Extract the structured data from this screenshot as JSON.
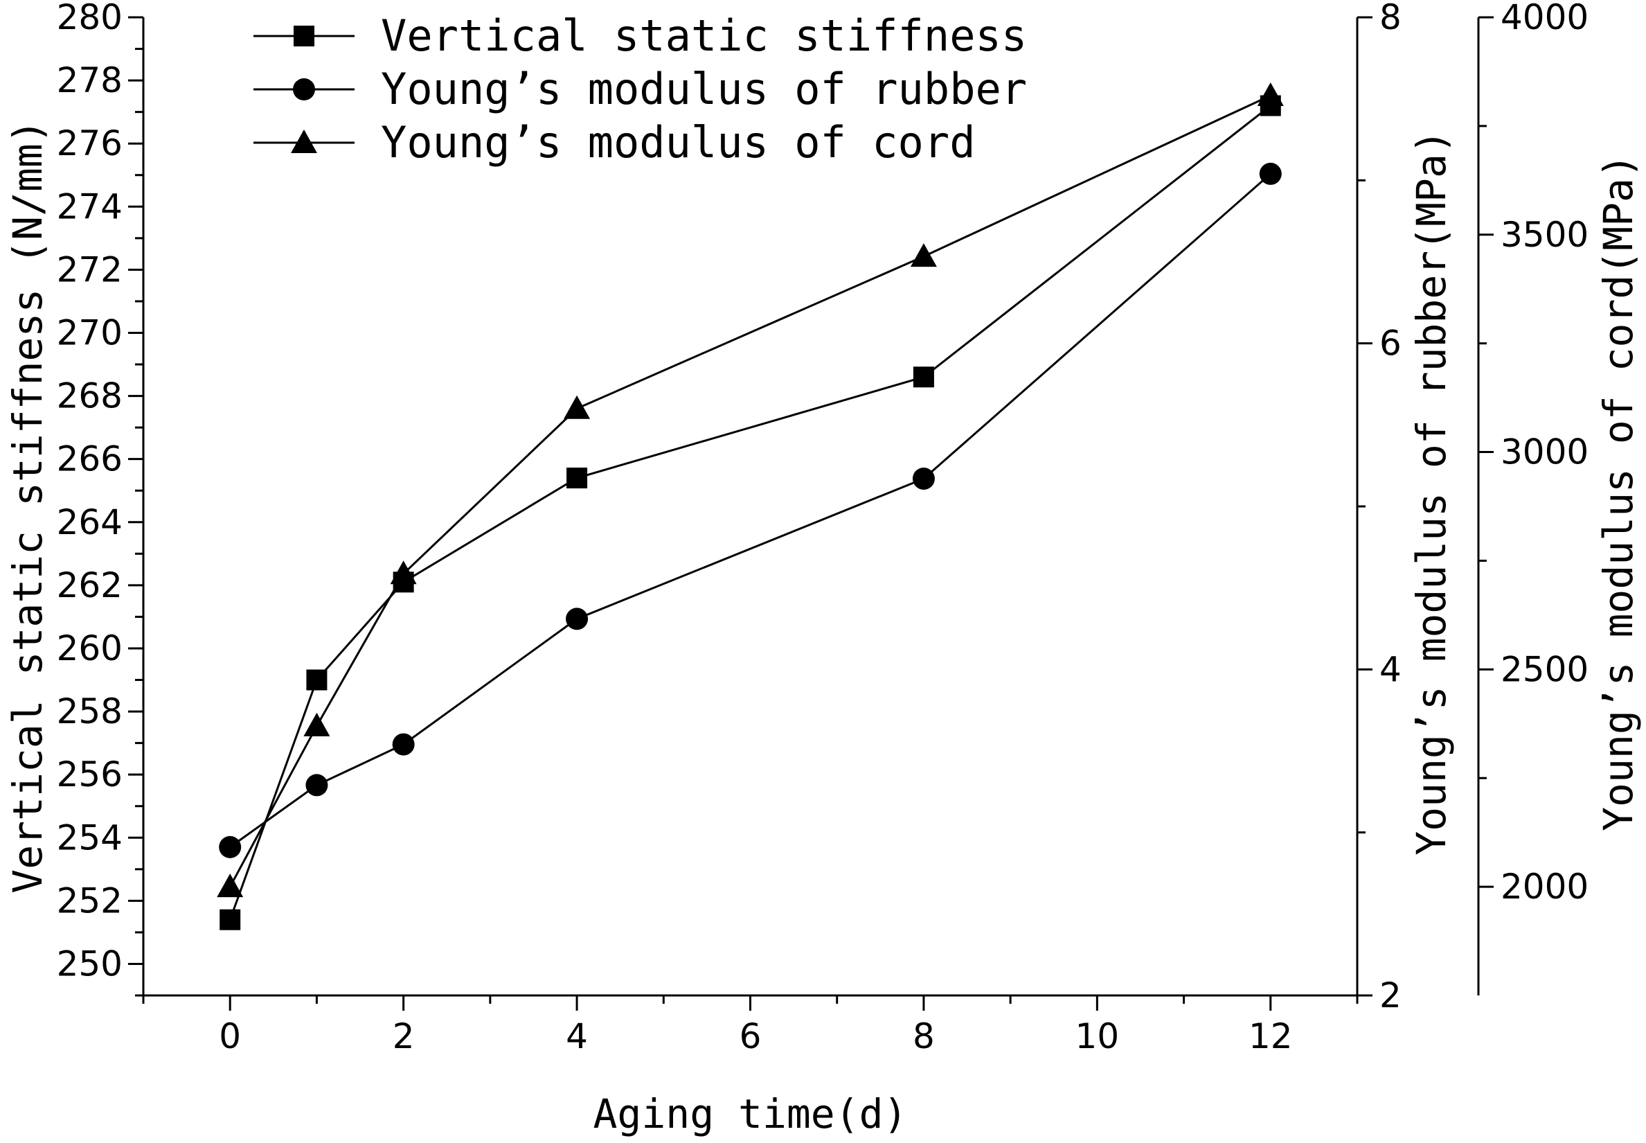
{
  "chart_data": {
    "type": "line",
    "xlabel": "Aging time(d)",
    "x_ticks": [
      0,
      2,
      4,
      6,
      8,
      10,
      12
    ],
    "xlim": [
      -1,
      13
    ],
    "axes": {
      "left": {
        "label": "Vertical static stiffness (N/mm)",
        "ylim": [
          249,
          280
        ],
        "ticks": [
          250,
          252,
          254,
          256,
          258,
          260,
          262,
          264,
          266,
          268,
          270,
          272,
          274,
          276,
          278,
          280
        ]
      },
      "right1": {
        "label": "Young’s modulus of rubber(MPa)",
        "ylim": [
          2,
          8
        ],
        "ticks": [
          2,
          4,
          6,
          8
        ]
      },
      "right2": {
        "label": "Young’s modulus of cord(MPa)",
        "ylim": [
          1750,
          4000
        ],
        "ticks": [
          2000,
          2500,
          3000,
          3500,
          4000
        ]
      }
    },
    "series": [
      {
        "name": "Vertical static stiffness",
        "axis": "left",
        "marker": "square",
        "x": [
          0,
          1,
          2,
          4,
          8,
          12
        ],
        "values": [
          251.4,
          259.0,
          262.1,
          265.4,
          268.6,
          277.2
        ]
      },
      {
        "name": "Young’s modulus of rubber",
        "axis": "right1",
        "marker": "circle",
        "x": [
          0,
          1,
          2,
          4,
          8,
          12
        ],
        "values": [
          2.91,
          3.29,
          3.54,
          4.31,
          5.17,
          7.04
        ]
      },
      {
        "name": "Young’s modulus of cord",
        "axis": "right2",
        "marker": "triangle",
        "x": [
          0,
          1,
          2,
          4,
          8,
          12
        ],
        "values": [
          2000,
          2370,
          2720,
          3100,
          3450,
          3820
        ]
      }
    ],
    "legend": {
      "position": "top-left"
    }
  }
}
